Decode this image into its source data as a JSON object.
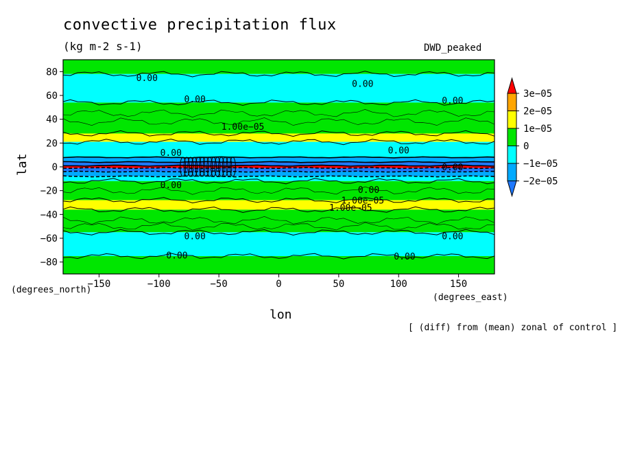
{
  "chart_data": {
    "type": "heatmap",
    "title": "convective precipitation flux",
    "units": "(kg m-2 s-1)",
    "model_label": "DWD_peaked",
    "xlabel": "lon",
    "ylabel": "lat",
    "x_units": "(degrees_east)",
    "y_units": "(degrees_north)",
    "footnote": "[ (diff) from (mean) zonal of control ]",
    "xlim": [
      -180,
      180
    ],
    "ylim": [
      -90,
      90
    ],
    "x_ticks": [
      -150,
      -100,
      -50,
      0,
      50,
      100,
      150
    ],
    "x_tick_labels": [
      "−150",
      "−100",
      "−50",
      "0",
      "50",
      "100",
      "150"
    ],
    "y_ticks": [
      80,
      60,
      40,
      20,
      0,
      -20,
      -40,
      -60,
      -80
    ],
    "y_tick_labels": [
      "80",
      "60",
      "40",
      "20",
      "0",
      "−20",
      "−40",
      "−60",
      "−80"
    ],
    "colorbar": {
      "labels": [
        "3e−05",
        "2e−05",
        "1e−05",
        "0",
        "−1e−05",
        "−2e−05"
      ],
      "levels": [
        -2e-05,
        -1e-05,
        0,
        1e-05,
        2e-05,
        3e-05
      ],
      "colors": [
        "#1e78ff",
        "#00aaff",
        "#00ffff",
        "#00e600",
        "#ffff00",
        "#ffa500",
        "#ff0000",
        "#ff2020"
      ]
    },
    "bands": [
      {
        "lat": [
          78,
          90
        ],
        "class": "0 to 1e-05"
      },
      {
        "lat": [
          54,
          78
        ],
        "class": "-1e-05 to 0"
      },
      {
        "lat": [
          28,
          54
        ],
        "class": "0 to 1e-05"
      },
      {
        "lat": [
          21,
          28
        ],
        "class": "1e-05 to 2e-05"
      },
      {
        "lat": [
          8,
          21
        ],
        "class": "-1e-05 to 0"
      },
      {
        "lat": [
          4,
          8
        ],
        "class": "-2e-05 to -1e-05"
      },
      {
        "lat": [
          1,
          4
        ],
        "class": "< -2e-05"
      },
      {
        "lat": [
          -1,
          1
        ],
        "class": "> 3e-05"
      },
      {
        "lat": [
          -4,
          -1
        ],
        "class": "< -2e-05"
      },
      {
        "lat": [
          -8,
          -4
        ],
        "class": "-2e-05 to -1e-05"
      },
      {
        "lat": [
          -12,
          -8
        ],
        "class": "-1e-05 to 0"
      },
      {
        "lat": [
          -28,
          -12
        ],
        "class": "0 to 1e-05"
      },
      {
        "lat": [
          -36,
          -28
        ],
        "class": "1e-05 to 2e-05"
      },
      {
        "lat": [
          -55,
          -36
        ],
        "class": "0 to 1e-05"
      },
      {
        "lat": [
          -75,
          -55
        ],
        "class": "-1e-05 to 0"
      },
      {
        "lat": [
          -90,
          -75
        ],
        "class": "0 to 1e-05"
      }
    ],
    "contour_labels": [
      {
        "text": "0.00",
        "lon": -110,
        "lat": 75
      },
      {
        "text": "0.00",
        "lon": 70,
        "lat": 70
      },
      {
        "text": "0.00",
        "lon": -70,
        "lat": 57
      },
      {
        "text": "0.00",
        "lon": 145,
        "lat": 56
      },
      {
        "text": "1.00e−05",
        "lon": -30,
        "lat": 34
      },
      {
        "text": "0.00",
        "lon": -90,
        "lat": 12
      },
      {
        "text": "0.00",
        "lon": 100,
        "lat": 14
      },
      {
        "text": "0.00",
        "lon": 145,
        "lat": 0
      },
      {
        "text": "0.00",
        "lon": -90,
        "lat": -15
      },
      {
        "text": "0.00",
        "lon": 75,
        "lat": -19
      },
      {
        "text": "1.00e−05",
        "lon": 70,
        "lat": -28
      },
      {
        "text": "1.00e−05",
        "lon": 60,
        "lat": -34
      },
      {
        "text": "0.00",
        "lon": -70,
        "lat": -58
      },
      {
        "text": "0.00",
        "lon": 145,
        "lat": -58
      },
      {
        "text": "0.00",
        "lon": -85,
        "lat": -74
      },
      {
        "text": "0.00",
        "lon": 105,
        "lat": -75
      }
    ]
  }
}
